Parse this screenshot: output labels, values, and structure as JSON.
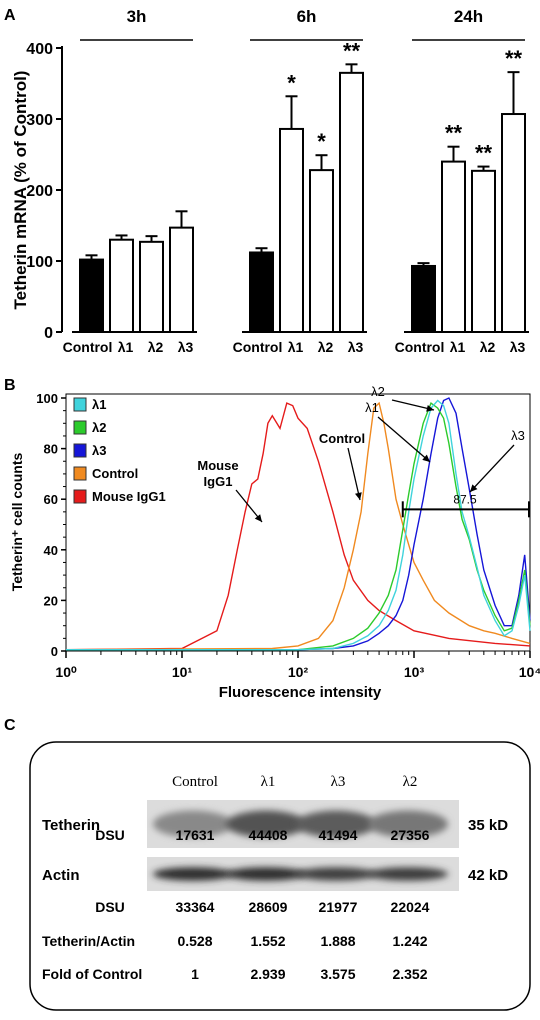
{
  "panels": {
    "a_letter": "A",
    "b_letter": "B",
    "c_letter": "C"
  },
  "chart_data": [
    {
      "type": "bar",
      "panel": "A",
      "ylabel": "Tetherin mRNA (% of Control)",
      "ylim": [
        0,
        400
      ],
      "yticks": [
        "0",
        "100",
        "200",
        "300",
        "400"
      ],
      "categories": [
        "Control",
        "λ1",
        "λ2",
        "λ3"
      ],
      "groups": [
        {
          "name": "3h",
          "values": [
            102,
            130,
            127,
            147
          ],
          "errors": [
            6,
            6,
            8,
            23
          ],
          "stars": [
            "",
            "",
            "",
            ""
          ]
        },
        {
          "name": "6h",
          "values": [
            112,
            286,
            228,
            365
          ],
          "errors": [
            6,
            46,
            21,
            12
          ],
          "stars": [
            "",
            "*",
            "*",
            "**"
          ]
        },
        {
          "name": "24h",
          "values": [
            93,
            240,
            227,
            307
          ],
          "errors": [
            4,
            21,
            6,
            59
          ],
          "stars": [
            "",
            "**",
            "**",
            "**"
          ]
        }
      ],
      "colors": {
        "control": "#000000",
        "treated": "#ffffff"
      }
    },
    {
      "type": "line",
      "panel": "B",
      "ylabel": "Tetherin⁺ cell counts",
      "xlabel": "Fluorescence intensity",
      "xscale": "log",
      "xlim": [
        1,
        10000
      ],
      "ylim": [
        0,
        100
      ],
      "yticks": [
        "0",
        "20",
        "40",
        "60",
        "80",
        "100"
      ],
      "xticks": [
        "10⁰",
        "10¹",
        "10²",
        "10³",
        "10⁴"
      ],
      "gate": {
        "from": 800,
        "to": 10000,
        "level": 56,
        "label": "87.5"
      },
      "legend_position": "top-left",
      "annotations": [
        "Mouse",
        "IgG1",
        "Control",
        "λ1",
        "λ2",
        "λ3"
      ],
      "series": [
        {
          "name": "λ1",
          "color": "#3fd3dc",
          "x": [
            1,
            100,
            200,
            300,
            400,
            500,
            600,
            700,
            800,
            900,
            1000,
            1200,
            1400,
            1600,
            1800,
            2000,
            2300,
            2600,
            3000,
            3500,
            4000,
            5000,
            6000,
            7000,
            8000,
            9000,
            10000
          ],
          "y": [
            0.5,
            0.5,
            1,
            3,
            6,
            10,
            16,
            24,
            38,
            55,
            68,
            85,
            96,
            99,
            97,
            90,
            70,
            55,
            45,
            33,
            22,
            12,
            6,
            8,
            18,
            30,
            8
          ]
        },
        {
          "name": "λ2",
          "color": "#2ccb2c",
          "x": [
            1,
            100,
            200,
            300,
            400,
            500,
            600,
            700,
            800,
            900,
            1000,
            1200,
            1400,
            1600,
            1800,
            2000,
            2300,
            2600,
            3000,
            3500,
            4000,
            5000,
            6000,
            7000,
            8000,
            9000,
            10000
          ],
          "y": [
            0.5,
            0.5,
            2,
            5,
            9,
            15,
            22,
            32,
            48,
            62,
            74,
            90,
            98,
            96,
            92,
            82,
            65,
            52,
            44,
            32,
            24,
            14,
            8,
            9,
            20,
            32,
            10
          ]
        },
        {
          "name": "λ3",
          "color": "#1616d8",
          "x": [
            1,
            100,
            200,
            300,
            400,
            500,
            600,
            700,
            800,
            900,
            1000,
            1200,
            1400,
            1600,
            1800,
            2000,
            2300,
            2600,
            3000,
            3500,
            4000,
            5000,
            6000,
            7000,
            8000,
            9000,
            10000
          ],
          "y": [
            0.5,
            0.5,
            1,
            2,
            4,
            7,
            10,
            14,
            20,
            30,
            42,
            60,
            78,
            92,
            99,
            100,
            94,
            80,
            64,
            46,
            32,
            18,
            10,
            10,
            22,
            38,
            12
          ]
        },
        {
          "name": "Control",
          "color": "#f08a20",
          "x": [
            1,
            60,
            100,
            150,
            200,
            250,
            300,
            350,
            400,
            450,
            500,
            550,
            600,
            700,
            800,
            900,
            1000,
            1200,
            1500,
            2000,
            3000,
            4000,
            5000,
            7000,
            10000
          ],
          "y": [
            0.5,
            1,
            2,
            5,
            12,
            25,
            40,
            55,
            78,
            96,
            98,
            90,
            80,
            60,
            50,
            42,
            35,
            28,
            20,
            15,
            10,
            8,
            7,
            5,
            3
          ]
        },
        {
          "name": "Mouse IgG1",
          "color": "#e51b1b",
          "x": [
            1,
            10,
            20,
            25,
            30,
            35,
            40,
            45,
            50,
            55,
            60,
            70,
            80,
            90,
            100,
            120,
            150,
            200,
            250,
            300,
            400,
            500,
            700,
            1000,
            2000,
            5000,
            10000
          ],
          "y": [
            0.5,
            1,
            8,
            22,
            40,
            55,
            66,
            68,
            78,
            90,
            93,
            88,
            98,
            97,
            92,
            88,
            75,
            55,
            38,
            28,
            20,
            16,
            12,
            8,
            5,
            3,
            2
          ]
        }
      ]
    },
    {
      "type": "table",
      "panel": "C",
      "columns": [
        "Control",
        "λ1",
        "λ3",
        "λ2"
      ],
      "blots": [
        {
          "name": "Tetherin",
          "size": "35 kD",
          "intensity": [
            0.35,
            0.65,
            0.6,
            0.45
          ]
        },
        {
          "name": "Actin",
          "size": "42 kD",
          "intensity": [
            0.85,
            0.85,
            0.75,
            0.78
          ]
        }
      ],
      "rows": [
        {
          "label": "DSU",
          "values": [
            "17631",
            "44408",
            "41494",
            "27356"
          ]
        },
        {
          "label": "DSU",
          "values": [
            "33364",
            "28609",
            "21977",
            "22024"
          ]
        },
        {
          "label": "Tetherin/Actin",
          "values": [
            "0.528",
            "1.552",
            "1.888",
            "1.242"
          ]
        },
        {
          "label": "Fold of Control",
          "values": [
            "1",
            "2.939",
            "3.575",
            "2.352"
          ]
        }
      ]
    }
  ]
}
